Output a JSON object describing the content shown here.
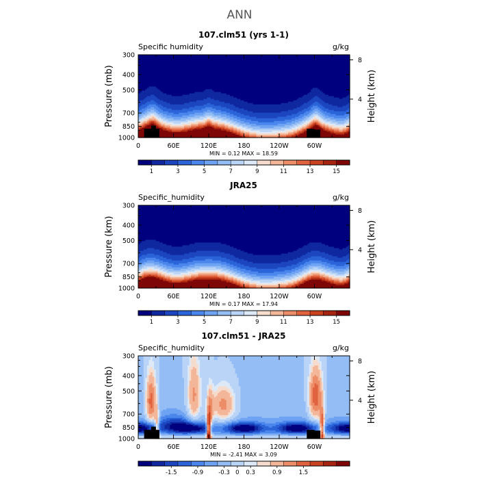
{
  "page": {
    "title": "ANN"
  },
  "chart_data": [
    {
      "type": "heatmap",
      "title": "107.clm51 (yrs 1-1)",
      "left_label": "Specific humidity",
      "units": "g/kg",
      "ylabel": "Pressure (mb)",
      "ylabel_right": "Height (km)",
      "x_ticks": [
        "0",
        "60E",
        "120E",
        "180",
        "120W",
        "60W"
      ],
      "x_tick_lon": [
        0,
        60,
        120,
        180,
        240,
        300
      ],
      "xlim": [
        0,
        360
      ],
      "y_ticks": [
        "300",
        "400",
        "500",
        "700",
        "850",
        "1000"
      ],
      "y_tick_p": [
        300,
        400,
        500,
        700,
        850,
        1000
      ],
      "ylim": [
        1000,
        300
      ],
      "y_scale": "log",
      "right_ticks": [
        "8",
        "4"
      ],
      "right_tick_km": [
        8,
        4
      ],
      "stats": "MIN =    0.12   MAX =   18.59",
      "min": 0.12,
      "max": 18.59,
      "colorbar_labels": [
        "1",
        "3",
        "5",
        "7",
        "9",
        "11",
        "13",
        "15"
      ],
      "colorbar_levels": 16,
      "field": "abs",
      "has_topography": true,
      "colors": [
        "#00007e",
        "#0f28a0",
        "#1c46c0",
        "#2a64d8",
        "#4a86ec",
        "#6ea2f2",
        "#94bdf5",
        "#bad4f7",
        "#dde9f7",
        "#f6dccd",
        "#f3b699",
        "#ed8d68",
        "#e1623f",
        "#c8421f",
        "#a72410",
        "#7e0606"
      ]
    },
    {
      "type": "heatmap",
      "title": "JRA25",
      "left_label": "Specific_humidity",
      "units": "g/kg",
      "ylabel": "Pressure (km)",
      "ylabel_right": "Height (km)",
      "x_ticks": [
        "0",
        "60E",
        "120E",
        "180",
        "120W",
        "60W"
      ],
      "x_tick_lon": [
        0,
        60,
        120,
        180,
        240,
        300
      ],
      "xlim": [
        0,
        360
      ],
      "y_ticks": [
        "300",
        "400",
        "500",
        "700",
        "850",
        "1000"
      ],
      "y_tick_p": [
        300,
        400,
        500,
        700,
        850,
        1000
      ],
      "ylim": [
        1000,
        300
      ],
      "y_scale": "log",
      "right_ticks": [
        "8",
        "4"
      ],
      "right_tick_km": [
        8,
        4
      ],
      "stats": "MIN =    0.17   MAX =   17.94",
      "min": 0.17,
      "max": 17.94,
      "colorbar_labels": [
        "1",
        "3",
        "5",
        "7",
        "9",
        "11",
        "13",
        "15"
      ],
      "colorbar_levels": 16,
      "field": "abs",
      "has_topography": false,
      "colors": [
        "#00007e",
        "#0f28a0",
        "#1c46c0",
        "#2a64d8",
        "#4a86ec",
        "#6ea2f2",
        "#94bdf5",
        "#bad4f7",
        "#dde9f7",
        "#f6dccd",
        "#f3b699",
        "#ed8d68",
        "#e1623f",
        "#c8421f",
        "#a72410",
        "#7e0606"
      ]
    },
    {
      "type": "heatmap",
      "title": "107.clm51 - JRA25",
      "left_label": "Specific_humidity",
      "units": "g/kg",
      "ylabel": "Pressure (mb)",
      "ylabel_right": "Height (km)",
      "x_ticks": [
        "0",
        "60E",
        "120E",
        "180",
        "120W",
        "60W"
      ],
      "x_tick_lon": [
        0,
        60,
        120,
        180,
        240,
        300
      ],
      "xlim": [
        0,
        360
      ],
      "y_ticks": [
        "300",
        "400",
        "500",
        "700",
        "850",
        "1000"
      ],
      "y_tick_p": [
        300,
        400,
        500,
        700,
        850,
        1000
      ],
      "ylim": [
        1000,
        300
      ],
      "y_scale": "log",
      "right_ticks": [
        "8",
        "4"
      ],
      "right_tick_km": [
        8,
        4
      ],
      "stats": "MIN =  -2.41   MAX =    3.09",
      "min": -2.41,
      "max": 3.09,
      "colorbar_labels": [
        "-1.5",
        "-0.9",
        "-0.3",
        "0",
        "0.3",
        "0.9",
        "1.5"
      ],
      "colorbar_levels": 16,
      "field": "diff",
      "has_topography": true,
      "colors": [
        "#00007e",
        "#0f28a0",
        "#1c46c0",
        "#2a64d8",
        "#4a86ec",
        "#6ea2f2",
        "#94bdf5",
        "#bad4f7",
        "#dde9f7",
        "#f6dccd",
        "#f3b699",
        "#ed8d68",
        "#e1623f",
        "#c8421f",
        "#a72410",
        "#7e0606"
      ]
    }
  ]
}
